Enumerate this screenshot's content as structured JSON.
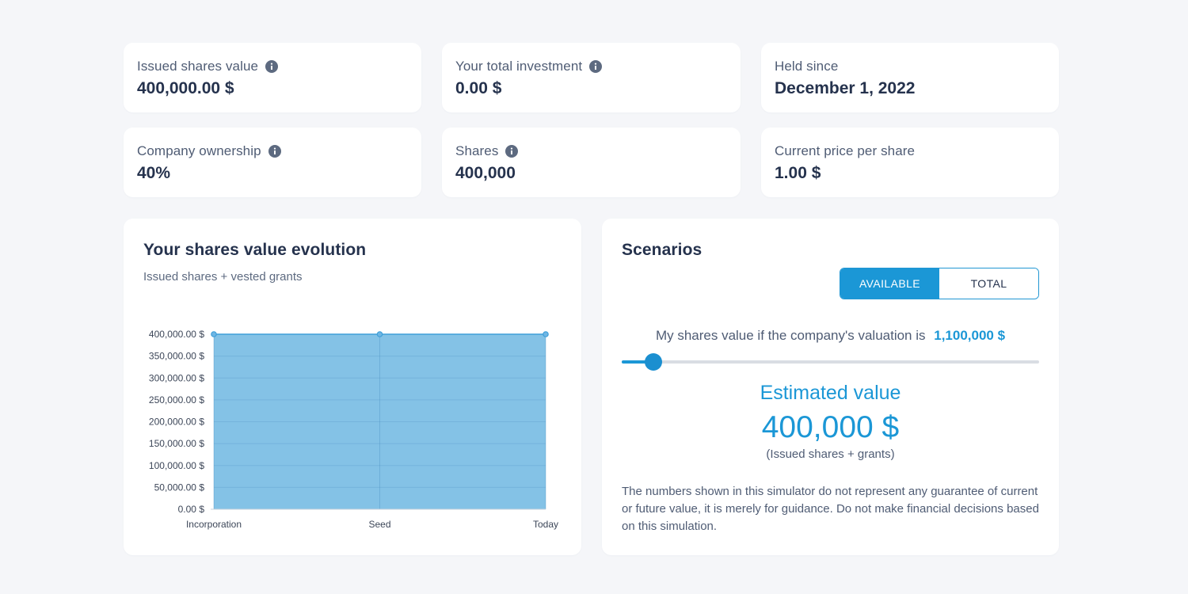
{
  "stats": [
    {
      "label": "Issued shares value",
      "value": "400,000.00 $",
      "info": true
    },
    {
      "label": "Your total investment",
      "value": "0.00 $",
      "info": true
    },
    {
      "label": "Held since",
      "value": "December 1, 2022",
      "info": false
    },
    {
      "label": "Company ownership",
      "value": "40%",
      "info": true
    },
    {
      "label": "Shares",
      "value": "400,000",
      "info": true
    },
    {
      "label": "Current price per share",
      "value": "1.00 $",
      "info": false
    }
  ],
  "evolution": {
    "title": "Your shares value evolution",
    "subtitle": "Issued shares + vested grants"
  },
  "chart_data": {
    "type": "area",
    "categories": [
      "Incorporation",
      "Seed",
      "Today"
    ],
    "values": [
      400000,
      400000,
      400000
    ],
    "ylim": [
      0,
      400000
    ],
    "yticks": [
      0,
      50000,
      100000,
      150000,
      200000,
      250000,
      300000,
      350000,
      400000
    ],
    "ytick_labels": [
      "0.00 $",
      "50,000.00 $",
      "100,000.00 $",
      "150,000.00 $",
      "200,000.00 $",
      "250,000.00 $",
      "300,000.00 $",
      "350,000.00 $",
      "400,000.00 $"
    ],
    "grid": true,
    "fill_color": "#84c2e6",
    "line_color": "#3f9fd8"
  },
  "scenarios": {
    "title": "Scenarios",
    "toggle": {
      "available": "AVAILABLE",
      "total": "TOTAL",
      "selected": "available"
    },
    "valuation_text": "My shares value if the company's valuation is",
    "valuation_value": "1,100,000 $",
    "slider_level": 0.076,
    "estimated_label": "Estimated value",
    "estimated_value": "400,000 $",
    "estimated_note": "(Issued shares + grants)",
    "disclaimer": "The numbers shown in this simulator do not represent any guarantee of current or future value, it is merely for guidance. Do not make financial decisions based on this simulation."
  },
  "colors": {
    "accent": "#1b97d6",
    "background": "#f5f6f9",
    "card": "#ffffff",
    "text": "#25324d"
  }
}
